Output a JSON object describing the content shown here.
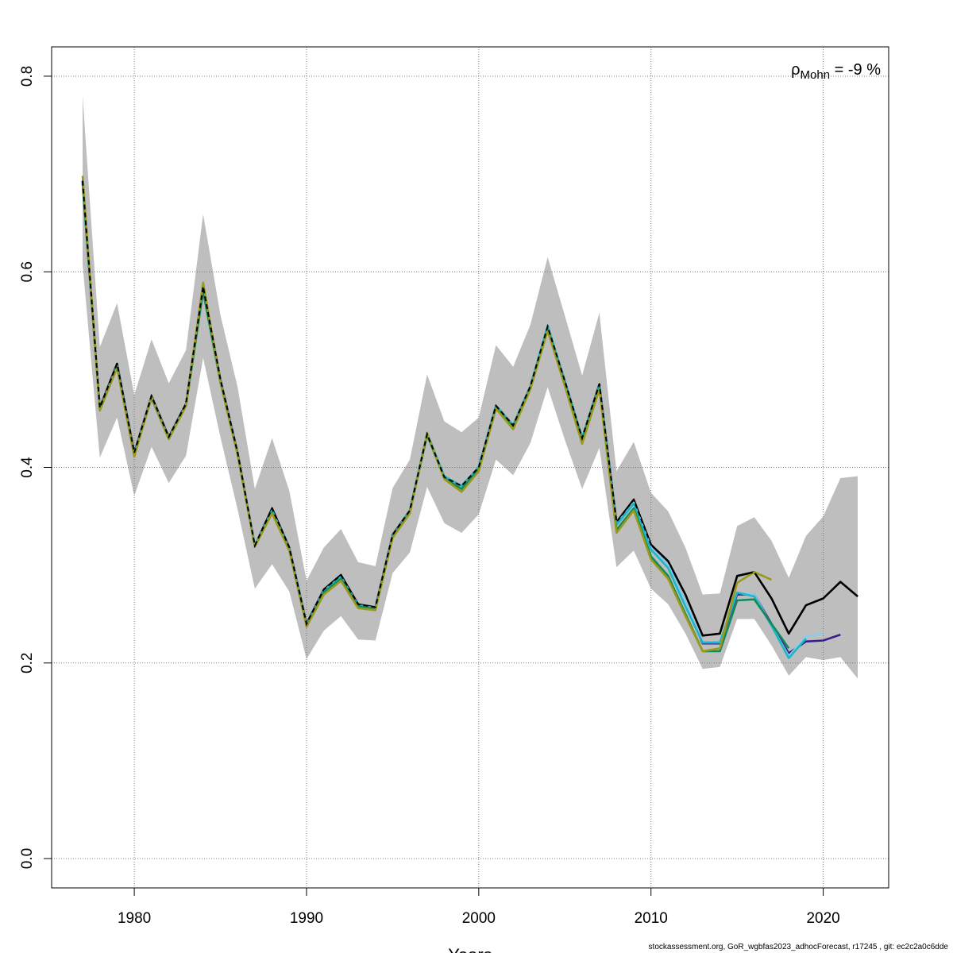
{
  "chart_data": {
    "type": "line",
    "title": "",
    "xlabel": "Years",
    "ylabel": "",
    "xlim": [
      1975.2,
      2023.8
    ],
    "ylim": [
      -0.03,
      0.83
    ],
    "x_ticks": [
      1980,
      1990,
      2000,
      2010,
      2020
    ],
    "y_ticks": [
      0.0,
      0.2,
      0.4,
      0.6,
      0.8
    ],
    "x_tick_labels": [
      "1980",
      "1990",
      "2000",
      "2010",
      "2020"
    ],
    "y_tick_labels": [
      "0.0",
      "0.2",
      "0.4",
      "0.6",
      "0.8"
    ],
    "grid": true,
    "annotation": {
      "symbol": "ρ",
      "subscript": "Mohn",
      "text": " = -9 %"
    },
    "band": {
      "x": [
        1977,
        1978,
        1979,
        1980,
        1981,
        1982,
        1983,
        1984,
        1985,
        1986,
        1987,
        1988,
        1989,
        1990,
        1991,
        1992,
        1993,
        1994,
        1995,
        1996,
        1997,
        1998,
        1999,
        2000,
        2001,
        2002,
        2003,
        2004,
        2005,
        2006,
        2007,
        2008,
        2009,
        2010,
        2011,
        2012,
        2013,
        2014,
        2015,
        2016,
        2017,
        2018,
        2019,
        2020,
        2021,
        2022
      ],
      "upper": [
        0.78,
        0.523,
        0.568,
        0.474,
        0.531,
        0.486,
        0.52,
        0.659,
        0.556,
        0.482,
        0.378,
        0.43,
        0.376,
        0.284,
        0.318,
        0.337,
        0.303,
        0.299,
        0.379,
        0.408,
        0.495,
        0.447,
        0.436,
        0.451,
        0.525,
        0.503,
        0.546,
        0.615,
        0.555,
        0.494,
        0.558,
        0.396,
        0.426,
        0.374,
        0.355,
        0.318,
        0.27,
        0.271,
        0.34,
        0.349,
        0.325,
        0.287,
        0.33,
        0.35,
        0.389,
        0.391
      ],
      "lower": [
        0.608,
        0.41,
        0.451,
        0.371,
        0.421,
        0.384,
        0.412,
        0.512,
        0.431,
        0.357,
        0.276,
        0.301,
        0.273,
        0.204,
        0.233,
        0.248,
        0.224,
        0.223,
        0.292,
        0.313,
        0.38,
        0.343,
        0.333,
        0.352,
        0.408,
        0.392,
        0.425,
        0.482,
        0.428,
        0.378,
        0.42,
        0.298,
        0.315,
        0.276,
        0.26,
        0.23,
        0.194,
        0.196,
        0.245,
        0.245,
        0.218,
        0.187,
        0.206,
        0.203,
        0.206,
        0.184
      ]
    },
    "series": [
      {
        "name": "",
        "color": "#000000",
        "dash": "none",
        "x": [
          1977,
          1978,
          1979,
          1980,
          1981,
          1982,
          1983,
          1984,
          1985,
          1986,
          1987,
          1988,
          1989,
          1990,
          1991,
          1992,
          1993,
          1994,
          1995,
          1996,
          1997,
          1998,
          1999,
          2000,
          2001,
          2002,
          2003,
          2004,
          2005,
          2006,
          2007,
          2008,
          2009,
          2010,
          2011,
          2012,
          2013,
          2014,
          2015,
          2016,
          2017,
          2018,
          2019,
          2020,
          2021,
          2022
        ],
        "values": [
          0.693,
          0.461,
          0.506,
          0.415,
          0.473,
          0.431,
          0.465,
          0.585,
          0.49,
          0.415,
          0.32,
          0.358,
          0.318,
          0.24,
          0.275,
          0.29,
          0.26,
          0.257,
          0.331,
          0.356,
          0.434,
          0.39,
          0.381,
          0.4,
          0.463,
          0.443,
          0.483,
          0.544,
          0.488,
          0.43,
          0.485,
          0.344,
          0.367,
          0.321,
          0.304,
          0.27,
          0.228,
          0.23,
          0.289,
          0.293,
          0.266,
          0.23,
          0.259,
          0.266,
          0.283,
          0.268
        ]
      },
      {
        "name": "",
        "color": "#000000",
        "dash": "6,4",
        "x": [
          1977,
          1978,
          1979,
          1980,
          1981,
          1982,
          1983,
          1984,
          1985,
          1986,
          1987,
          1988,
          1989,
          1990,
          1991,
          1992,
          1993,
          1994,
          1995,
          1996,
          1997,
          1998,
          1999,
          2000,
          2001,
          2002,
          2003,
          2004,
          2005,
          2006,
          2007,
          2008,
          2009,
          2010,
          2011,
          2012,
          2013,
          2014,
          2015,
          2016,
          2017,
          2018,
          2019,
          2020,
          2021,
          2022
        ],
        "values": [
          0.693,
          0.461,
          0.506,
          0.415,
          0.473,
          0.431,
          0.465,
          0.585,
          0.49,
          0.415,
          0.32,
          0.358,
          0.318,
          0.24,
          0.275,
          0.29,
          0.26,
          0.257,
          0.331,
          0.356,
          0.434,
          0.39,
          0.381,
          0.4,
          0.463,
          0.443,
          0.483,
          0.544,
          0.488,
          0.43,
          0.485,
          0.344,
          0.367,
          0.321,
          0.304,
          0.27,
          0.228,
          0.23,
          0.289,
          0.293,
          0.266,
          0.23,
          0.259,
          0.266,
          0.283,
          0.268
        ]
      },
      {
        "name": "",
        "color": "#3a1f8c",
        "dash": "none",
        "x": [
          1977,
          1978,
          1979,
          1980,
          1981,
          1982,
          1983,
          1984,
          1985,
          1986,
          1987,
          1988,
          1989,
          1990,
          1991,
          1992,
          1993,
          1994,
          1995,
          1996,
          1997,
          1998,
          1999,
          2000,
          2001,
          2002,
          2003,
          2004,
          2005,
          2006,
          2007,
          2008,
          2009,
          2010,
          2011,
          2012,
          2013,
          2014,
          2015,
          2016,
          2017,
          2018,
          2019,
          2020,
          2021
        ],
        "values": [
          0.692,
          0.46,
          0.504,
          0.414,
          0.472,
          0.43,
          0.464,
          0.583,
          0.489,
          0.414,
          0.32,
          0.356,
          0.317,
          0.239,
          0.274,
          0.288,
          0.259,
          0.256,
          0.33,
          0.355,
          0.434,
          0.39,
          0.38,
          0.399,
          0.462,
          0.442,
          0.482,
          0.543,
          0.487,
          0.429,
          0.484,
          0.342,
          0.364,
          0.318,
          0.3,
          0.262,
          0.22,
          0.22,
          0.27,
          0.27,
          0.24,
          0.21,
          0.222,
          0.223,
          0.229
        ]
      },
      {
        "name": "",
        "color": "#87ceeb",
        "dash": "none",
        "x": [
          1977,
          1978,
          1979,
          1980,
          1981,
          1982,
          1983,
          1984,
          1985,
          1986,
          1987,
          1988,
          1989,
          1990,
          1991,
          1992,
          1993,
          1994,
          1995,
          1996,
          1997,
          1998,
          1999,
          2000,
          2001,
          2002,
          2003,
          2004,
          2005,
          2006,
          2007,
          2008,
          2009,
          2010,
          2011,
          2012,
          2013,
          2014,
          2015,
          2016,
          2017,
          2018,
          2019,
          2020
        ],
        "values": [
          0.692,
          0.46,
          0.504,
          0.414,
          0.472,
          0.43,
          0.464,
          0.583,
          0.489,
          0.414,
          0.32,
          0.356,
          0.317,
          0.239,
          0.274,
          0.288,
          0.259,
          0.256,
          0.33,
          0.355,
          0.434,
          0.39,
          0.38,
          0.399,
          0.462,
          0.442,
          0.482,
          0.543,
          0.487,
          0.429,
          0.484,
          0.342,
          0.364,
          0.318,
          0.3,
          0.262,
          0.221,
          0.221,
          0.272,
          0.27,
          0.238,
          0.207,
          0.227,
          0.23
        ]
      },
      {
        "name": "",
        "color": "#1fb5c9",
        "dash": "none",
        "x": [
          1977,
          1978,
          1979,
          1980,
          1981,
          1982,
          1983,
          1984,
          1985,
          1986,
          1987,
          1988,
          1989,
          1990,
          1991,
          1992,
          1993,
          1994,
          1995,
          1996,
          1997,
          1998,
          1999,
          2000,
          2001,
          2002,
          2003,
          2004,
          2005,
          2006,
          2007,
          2008,
          2009,
          2010,
          2011,
          2012,
          2013,
          2014,
          2015,
          2016,
          2017,
          2018,
          2019
        ],
        "values": [
          0.692,
          0.46,
          0.504,
          0.414,
          0.472,
          0.43,
          0.464,
          0.583,
          0.489,
          0.414,
          0.32,
          0.356,
          0.317,
          0.239,
          0.274,
          0.288,
          0.259,
          0.256,
          0.33,
          0.356,
          0.435,
          0.391,
          0.381,
          0.4,
          0.463,
          0.443,
          0.483,
          0.545,
          0.488,
          0.43,
          0.484,
          0.341,
          0.363,
          0.316,
          0.297,
          0.258,
          0.221,
          0.221,
          0.272,
          0.268,
          0.238,
          0.205,
          0.225
        ]
      },
      {
        "name": "",
        "color": "#108a5a",
        "dash": "none",
        "x": [
          1977,
          1978,
          1979,
          1980,
          1981,
          1982,
          1983,
          1984,
          1985,
          1986,
          1987,
          1988,
          1989,
          1990,
          1991,
          1992,
          1993,
          1994,
          1995,
          1996,
          1997,
          1998,
          1999,
          2000,
          2001,
          2002,
          2003,
          2004,
          2005,
          2006,
          2007,
          2008,
          2009,
          2010,
          2011,
          2012,
          2013,
          2014,
          2015,
          2016,
          2017,
          2018
        ],
        "values": [
          0.69,
          0.459,
          0.503,
          0.413,
          0.471,
          0.429,
          0.463,
          0.58,
          0.487,
          0.413,
          0.319,
          0.354,
          0.315,
          0.238,
          0.272,
          0.286,
          0.258,
          0.255,
          0.329,
          0.354,
          0.433,
          0.389,
          0.378,
          0.398,
          0.461,
          0.441,
          0.481,
          0.541,
          0.486,
          0.428,
          0.482,
          0.336,
          0.358,
          0.309,
          0.289,
          0.25,
          0.212,
          0.212,
          0.264,
          0.265,
          0.24,
          0.215
        ]
      },
      {
        "name": "",
        "color": "#9a9a1a",
        "dash": "none",
        "x": [
          1977,
          1978,
          1979,
          1980,
          1981,
          1982,
          1983,
          1984,
          1985,
          1986,
          1987,
          1988,
          1989,
          1990,
          1991,
          1992,
          1993,
          1994,
          1995,
          1996,
          1997,
          1998,
          1999,
          2000,
          2001,
          2002,
          2003,
          2004,
          2005,
          2006,
          2007,
          2008,
          2009,
          2010,
          2011,
          2012,
          2013,
          2014,
          2015,
          2016,
          2017
        ],
        "values": [
          0.698,
          0.458,
          0.502,
          0.411,
          0.472,
          0.429,
          0.463,
          0.589,
          0.487,
          0.413,
          0.319,
          0.353,
          0.315,
          0.237,
          0.27,
          0.284,
          0.256,
          0.254,
          0.328,
          0.353,
          0.435,
          0.388,
          0.375,
          0.396,
          0.46,
          0.439,
          0.48,
          0.54,
          0.483,
          0.424,
          0.48,
          0.333,
          0.356,
          0.306,
          0.286,
          0.248,
          0.212,
          0.215,
          0.282,
          0.293,
          0.285
        ]
      }
    ]
  },
  "footer": {
    "note": "stockassessment.org, GoR_wgbfas2023_adhocForecast, r17245 , git: ec2c2a0c6dde"
  }
}
